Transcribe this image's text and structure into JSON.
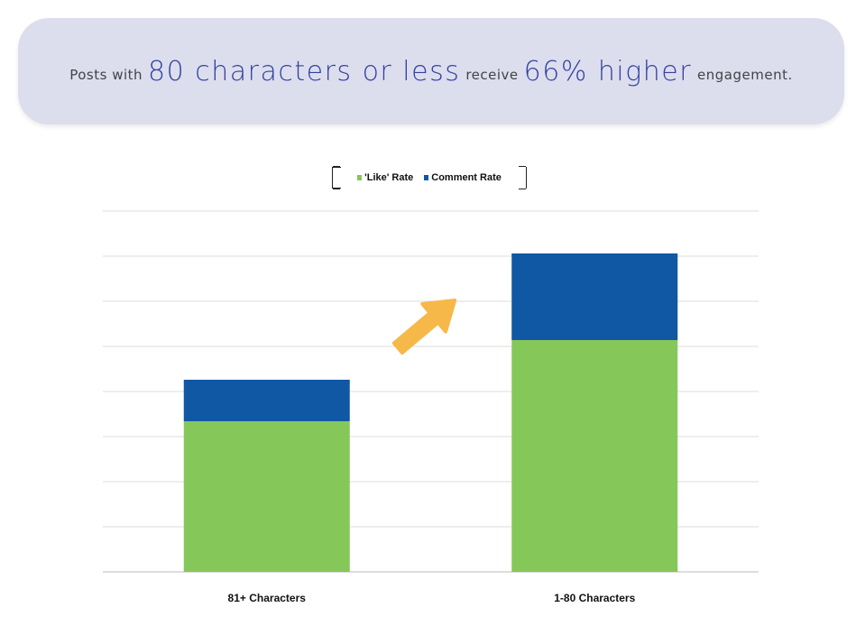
{
  "banner": {
    "part1": "Posts with",
    "part2": "80 characters or less",
    "part3": "receive",
    "part4": "66% higher",
    "part5": "engagement."
  },
  "chart_data": {
    "type": "bar",
    "stacked": true,
    "categories": [
      "81+ Characters",
      "1-80 Characters"
    ],
    "series": [
      {
        "name": "'Like' Rate",
        "color": "#86c75a",
        "values": [
          3.34,
          5.14
        ]
      },
      {
        "name": "Comment Rate",
        "color": "#1057a4",
        "values": [
          0.92,
          1.92
        ]
      }
    ],
    "ylim": [
      0,
      8
    ],
    "yticks_unlabeled": 8,
    "grid": true,
    "legend": "top-center",
    "annotation": "arrow-up-right",
    "xlabel": "",
    "ylabel": "",
    "title": ""
  }
}
